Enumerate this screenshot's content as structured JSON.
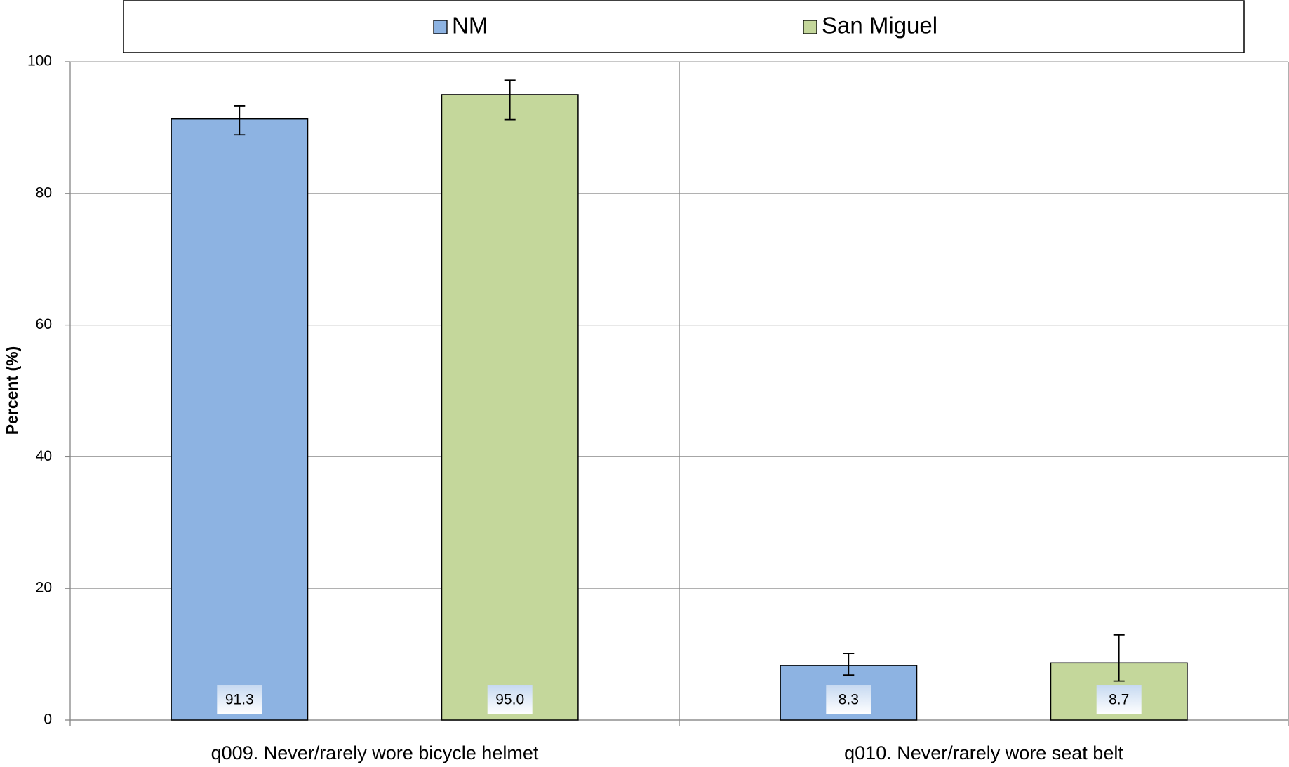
{
  "chart_data": {
    "type": "bar",
    "y_label": "Percent (%)",
    "categories": [
      "q009. Never/rarely wore bicycle helmet",
      "q010. Never/rarely wore seat belt"
    ],
    "series": [
      {
        "name": "NM",
        "color": "#8db3e2",
        "values": [
          91.3,
          8.3
        ],
        "value_labels": [
          "91.3",
          "8.3"
        ],
        "lower": [
          88.9,
          6.8
        ],
        "upper": [
          93.3,
          10.1
        ]
      },
      {
        "name": "San Miguel",
        "color": "#c4d79b",
        "values": [
          95.0,
          8.7
        ],
        "value_labels": [
          "95.0",
          "8.7"
        ],
        "lower": [
          91.2,
          5.9
        ],
        "upper": [
          97.2,
          12.9
        ]
      }
    ],
    "ylim": [
      0,
      100
    ],
    "yticks": [
      0,
      20,
      40,
      60,
      80,
      100
    ],
    "grid": true,
    "legend": "top"
  }
}
